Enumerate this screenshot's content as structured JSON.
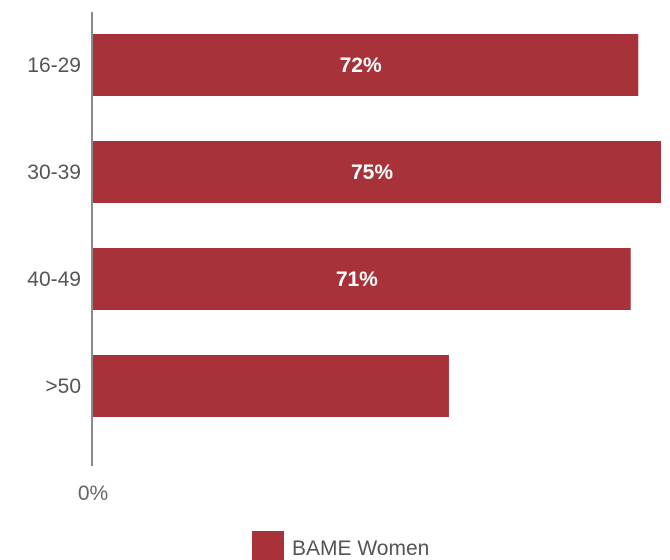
{
  "chart_data": {
    "type": "bar",
    "orientation": "horizontal",
    "categories": [
      "16-29",
      "30-39",
      "40-49",
      ">50"
    ],
    "series": [
      {
        "name": "BAME Women",
        "values": [
          72,
          75,
          71,
          47
        ],
        "data_labels": [
          "72%",
          "75%",
          "71%",
          ""
        ],
        "color": "#a8323a"
      }
    ],
    "x_tick_labels": [
      "0%"
    ],
    "xlim": [
      0,
      75
    ],
    "grid": false,
    "legend_position": "bottom-center",
    "title": "",
    "xlabel": "",
    "ylabel": ""
  }
}
